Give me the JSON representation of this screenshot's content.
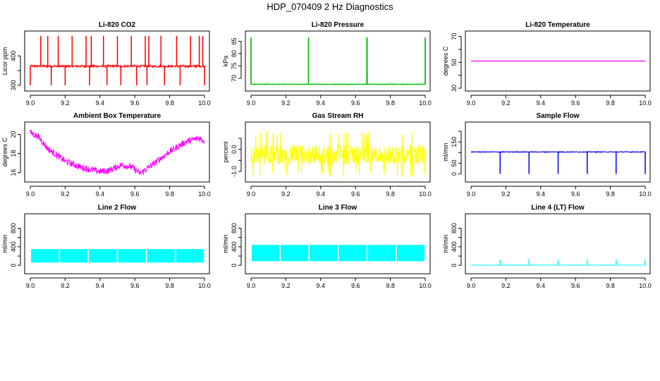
{
  "title": "HDP_070409  2 Hz Diagnostics",
  "chart_data": [
    {
      "type": "line",
      "title": "Li-820 CO2",
      "ylabel": "Licor ppm",
      "color": "#ff0000",
      "xlim": [
        9.0,
        10.0
      ],
      "ylim": [
        290,
        475
      ],
      "x_ticks": [
        "9.0",
        "9.2",
        "9.4",
        "9.6",
        "9.8",
        "10.0"
      ],
      "y_ticks": [
        300,
        350,
        400
      ],
      "y_tick_labels": [
        "300",
        "",
        "400"
      ],
      "series": [
        {
          "name": "CO2",
          "baseline": 365,
          "noise": 4,
          "spikes_up": [
            9.06,
            9.1,
            9.16,
            9.24,
            9.32,
            9.35,
            9.42,
            9.5,
            9.58,
            9.66,
            9.68,
            9.75,
            9.84,
            9.92,
            9.97,
            9.99
          ],
          "spikes_up_value": 468,
          "spikes_down": [
            9.0,
            9.12,
            9.2,
            9.34,
            9.44,
            9.52,
            9.61,
            9.67,
            9.77,
            9.86,
            10.0
          ],
          "spikes_down_value": 300
        }
      ]
    },
    {
      "type": "line",
      "title": "Li-820 Pressure",
      "ylabel": "kPa",
      "color": "#00bb00",
      "xlim": [
        9.0,
        10.0
      ],
      "ylim": [
        66,
        88
      ],
      "x_ticks": [
        "9.0",
        "9.2",
        "9.4",
        "9.6",
        "9.8",
        "10.0"
      ],
      "y_ticks": [
        70,
        75,
        80,
        85
      ],
      "y_tick_labels": [
        "70",
        "75",
        "80",
        "85"
      ],
      "series": [
        {
          "name": "Pressure",
          "baseline": 67.6,
          "noise": 0.1,
          "spikes_up": [
            9.0,
            9.33,
            9.665,
            9.667,
            10.0
          ],
          "spikes_up_value": 86.5
        }
      ]
    },
    {
      "type": "line",
      "title": "Li-820 Temperature",
      "ylabel": "degrees C",
      "color": "#ff00ff",
      "xlim": [
        9.0,
        10.0
      ],
      "ylim": [
        30,
        72
      ],
      "x_ticks": [
        "9.0",
        "9.2",
        "9.4",
        "9.6",
        "9.8",
        "10.0"
      ],
      "y_ticks": [
        30,
        40,
        50,
        60,
        70
      ],
      "y_tick_labels": [
        "30",
        "",
        "50",
        "",
        "70"
      ],
      "series": [
        {
          "name": "Temperature",
          "baseline": 51,
          "noise": 0
        }
      ]
    },
    {
      "type": "line",
      "title": "Ambient Box Temperature",
      "ylabel": "degrees C",
      "color": "#ff00ff",
      "xlim": [
        9.0,
        10.0
      ],
      "ylim": [
        15.3,
        21.0
      ],
      "x_ticks": [
        "9.0",
        "9.2",
        "9.4",
        "9.6",
        "9.8",
        "10.0"
      ],
      "y_ticks": [
        16,
        18,
        20
      ],
      "y_tick_labels": [
        "16",
        "18",
        "20"
      ],
      "series": [
        {
          "name": "Box Temperature",
          "noise": 0.35,
          "x": [
            9.0,
            9.05,
            9.1,
            9.2,
            9.3,
            9.4,
            9.45,
            9.52,
            9.58,
            9.63,
            9.7,
            9.8,
            9.9,
            9.97,
            10.0
          ],
          "y": [
            20.2,
            19.7,
            18.5,
            17.2,
            16.5,
            16.1,
            16.2,
            16.8,
            16.6,
            15.9,
            16.8,
            18.2,
            19.3,
            19.6,
            19.3
          ]
        }
      ]
    },
    {
      "type": "line",
      "title": "Gas Stream RH",
      "ylabel": "percent",
      "color": "#ffff00",
      "xlim": [
        9.0,
        10.0
      ],
      "ylim": [
        -1.35,
        1.1
      ],
      "x_ticks": [
        "9.0",
        "9.2",
        "9.4",
        "9.6",
        "9.8",
        "10.0"
      ],
      "y_ticks": [
        -1.0,
        -0.5,
        0.0,
        0.5
      ],
      "y_tick_labels": [
        "-1.0",
        "",
        "0.0",
        ""
      ],
      "series": [
        {
          "name": "RH",
          "baseline": -0.25,
          "noise": 0.45,
          "min": -1.3,
          "max": 0.85
        }
      ]
    },
    {
      "type": "line",
      "title": "Sample Flow",
      "ylabel": "ml/min",
      "color": "#0000ff",
      "xlim": [
        9.0,
        10.0
      ],
      "ylim": [
        -25,
        230
      ],
      "x_ticks": [
        "9.0",
        "9.2",
        "9.4",
        "9.6",
        "9.8",
        "10.0"
      ],
      "y_ticks": [
        0,
        50,
        100,
        150,
        200
      ],
      "y_tick_labels": [
        "0",
        "50",
        "",
        "150",
        ""
      ],
      "series": [
        {
          "name": "Sample Flow",
          "baseline": 103,
          "noise": 2,
          "spikes_down": [
            9.167,
            9.333,
            9.5,
            9.667,
            9.833,
            10.0
          ],
          "spikes_down_value": 0
        }
      ]
    },
    {
      "type": "line",
      "title": "Line 2 Flow",
      "ylabel": "ml/min",
      "color": "#00ffff",
      "xlim": [
        9.0,
        10.0
      ],
      "ylim": [
        -120,
        1050
      ],
      "x_ticks": [
        "9.0",
        "9.2",
        "9.4",
        "9.6",
        "9.8",
        "10.0"
      ],
      "y_ticks": [
        0,
        200,
        400,
        600,
        800
      ],
      "y_tick_labels": [
        "0",
        "",
        "400",
        "",
        "800"
      ],
      "series": [
        {
          "name": "Line 2 Flow",
          "band_low": 60,
          "band_high": 350,
          "gaps": [
            9.167,
            9.333,
            9.5,
            9.667,
            9.833
          ]
        }
      ]
    },
    {
      "type": "line",
      "title": "Line 3 Flow",
      "ylabel": "ml/min",
      "color": "#00ffff",
      "xlim": [
        9.0,
        10.0
      ],
      "ylim": [
        -120,
        1050
      ],
      "x_ticks": [
        "9.0",
        "9.2",
        "9.4",
        "9.6",
        "9.8",
        "10.0"
      ],
      "y_ticks": [
        0,
        200,
        400,
        600,
        800
      ],
      "y_tick_labels": [
        "0",
        "",
        "400",
        "",
        "800"
      ],
      "series": [
        {
          "name": "Line 3 Flow",
          "band_low": 90,
          "band_high": 440,
          "gaps": [
            9.167,
            9.333,
            9.5,
            9.667,
            9.833
          ]
        }
      ]
    },
    {
      "type": "line",
      "title": "Line 4 (LT) Flow",
      "ylabel": "ml/min",
      "color": "#00ffff",
      "xlim": [
        9.0,
        10.0
      ],
      "ylim": [
        -120,
        1050
      ],
      "x_ticks": [
        "9.0",
        "9.2",
        "9.4",
        "9.6",
        "9.8",
        "10.0"
      ],
      "y_ticks": [
        0,
        200,
        400,
        600,
        800
      ],
      "y_tick_labels": [
        "0",
        "",
        "400",
        "",
        "800"
      ],
      "series": [
        {
          "name": "Line 4 Flow",
          "baseline": 5,
          "noise": 2,
          "spikes_up": [
            9.167,
            9.333,
            9.5,
            9.667,
            9.833,
            10.0
          ],
          "spikes_up_value": 130
        }
      ]
    }
  ]
}
